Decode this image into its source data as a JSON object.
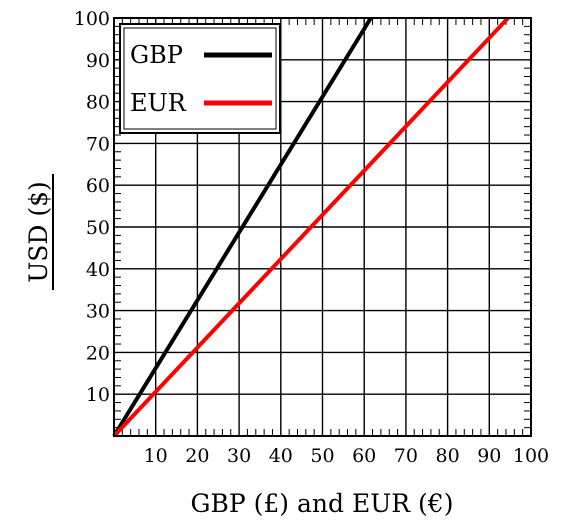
{
  "chart_data": {
    "type": "line",
    "xlabel": "GBP (£) and EUR (€)",
    "ylabel": "USD ($)",
    "xlim": [
      0,
      100
    ],
    "ylim": [
      0,
      100
    ],
    "x_ticks": [
      10,
      20,
      30,
      40,
      50,
      60,
      70,
      80,
      90,
      100
    ],
    "y_ticks": [
      10,
      20,
      30,
      40,
      50,
      60,
      70,
      80,
      90,
      100
    ],
    "grid": true,
    "legend_position": "top-left",
    "series": [
      {
        "name": "GBP",
        "color": "#000000",
        "x": [
          0,
          61.6
        ],
        "y": [
          0,
          100
        ]
      },
      {
        "name": "EUR",
        "color": "#ff0000",
        "x": [
          0,
          94.5
        ],
        "y": [
          0,
          100
        ]
      }
    ]
  }
}
